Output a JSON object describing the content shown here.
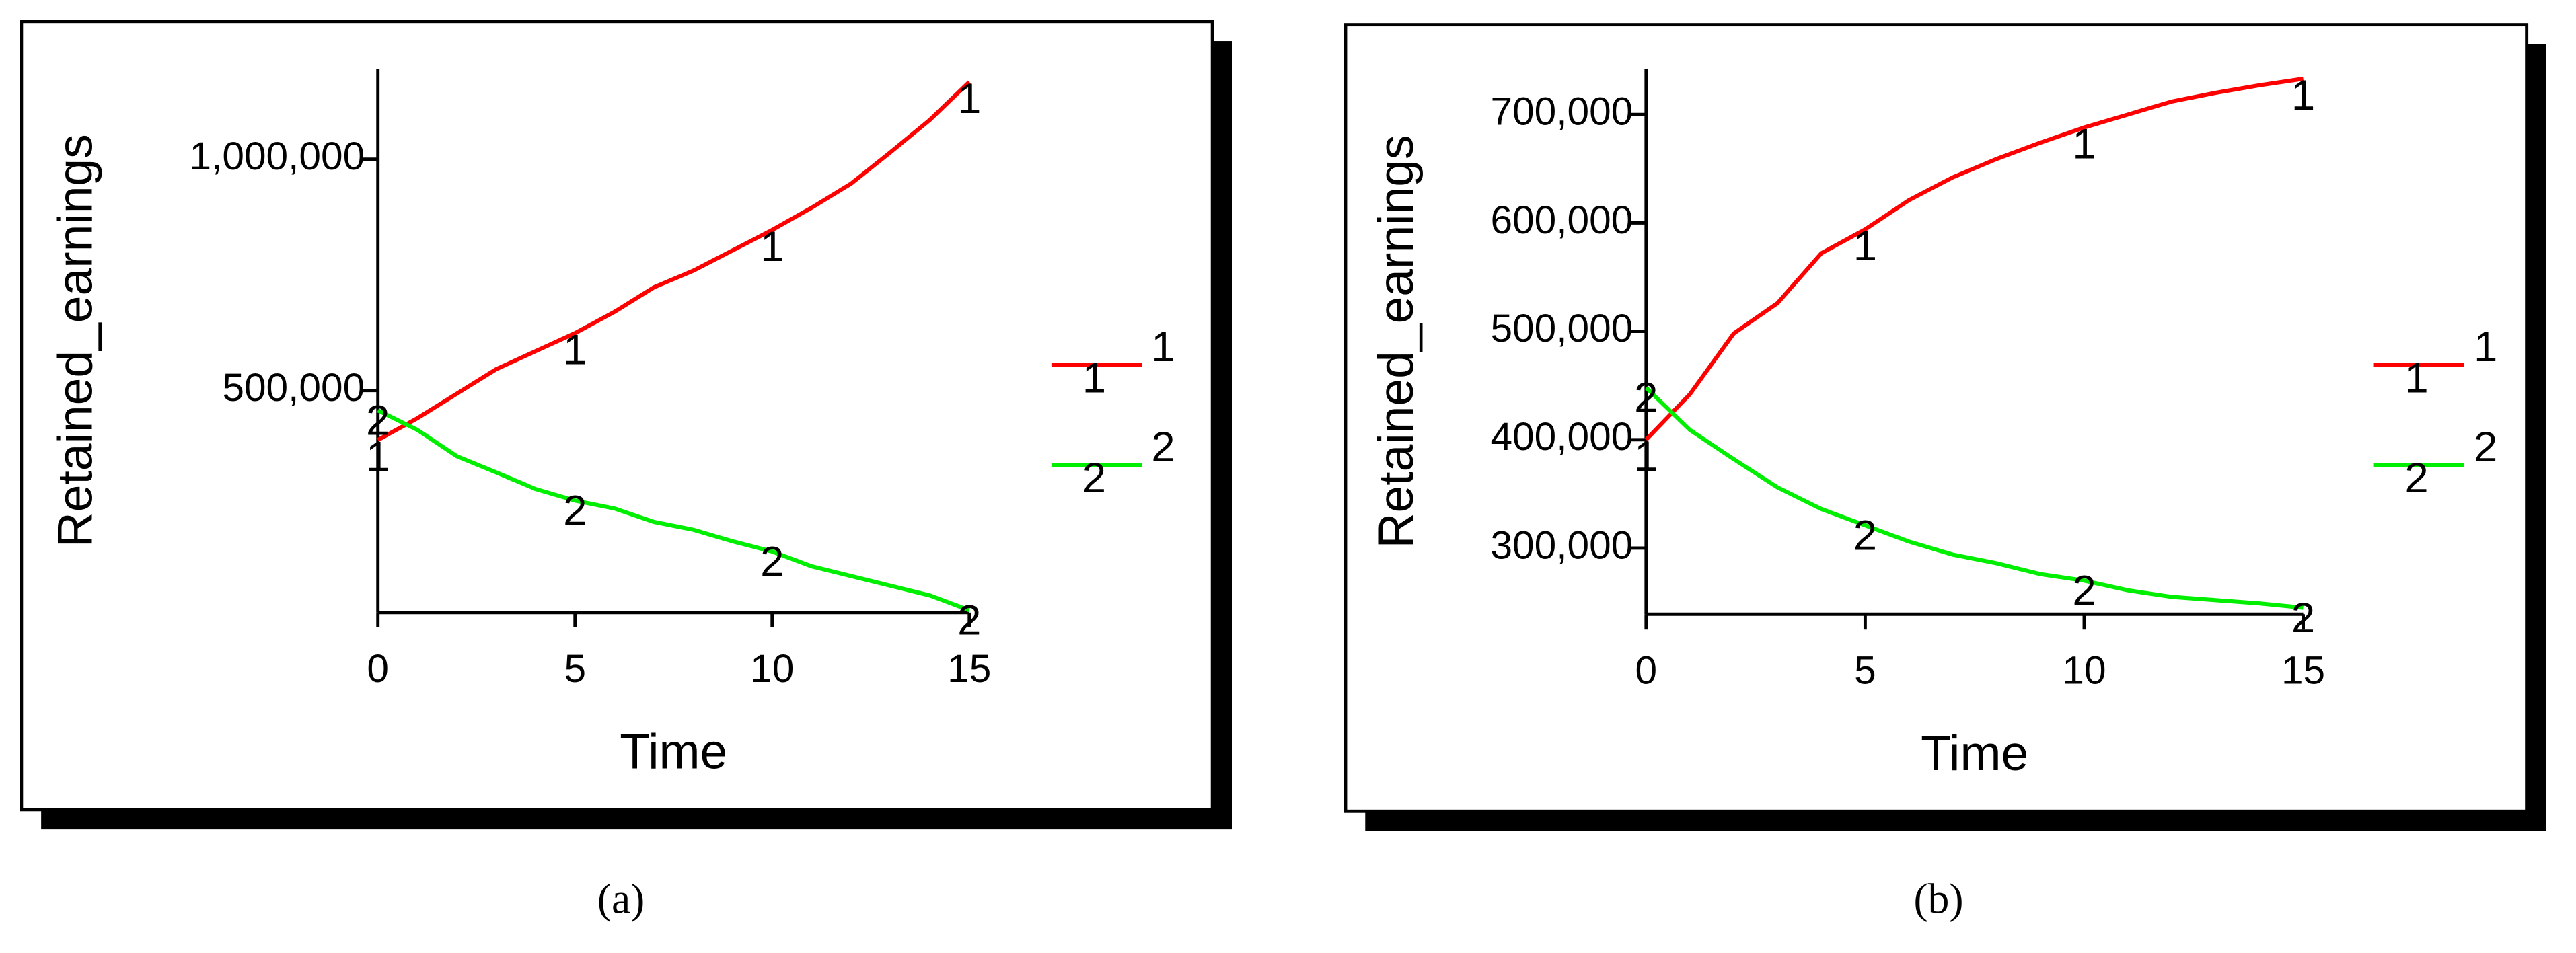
{
  "chart_data": [
    {
      "type": "line",
      "caption": "(a)",
      "x_label": "Time",
      "y_label": "Retained_earnings",
      "x": [
        0,
        1,
        2,
        3,
        4,
        5,
        6,
        7,
        8,
        9,
        10,
        11,
        12,
        13,
        14,
        15
      ],
      "xlim": [
        0,
        15
      ],
      "xticks": [
        0,
        5,
        10,
        15
      ],
      "ylim": [
        20000,
        1195000
      ],
      "yticks": [
        {
          "value": 500000,
          "label": "500,000"
        },
        {
          "value": 1000000,
          "label": "1,000,000"
        }
      ],
      "series": [
        {
          "name": "1",
          "color": "#ff0000",
          "values": [
            393000,
            440000,
            493000,
            546000,
            585000,
            624000,
            670000,
            723000,
            759000,
            803000,
            847000,
            895000,
            947000,
            1015000,
            1085000,
            1167000
          ]
        },
        {
          "name": "2",
          "color": "#00ee00",
          "values": [
            457000,
            415000,
            358000,
            323000,
            287000,
            262000,
            245000,
            216000,
            199000,
            174000,
            152000,
            120000,
            99000,
            78000,
            57000,
            25000
          ]
        }
      ]
    },
    {
      "type": "line",
      "caption": "(b)",
      "x_label": "Time",
      "y_label": "Retained_earnings",
      "x": [
        0,
        1,
        2,
        3,
        4,
        5,
        6,
        7,
        8,
        9,
        10,
        11,
        12,
        13,
        14,
        15
      ],
      "xlim": [
        0,
        15
      ],
      "xticks": [
        0,
        5,
        10,
        15
      ],
      "ylim": [
        239000,
        742000
      ],
      "yticks": [
        {
          "value": 300000,
          "label": "300,000"
        },
        {
          "value": 400000,
          "label": "400,000"
        },
        {
          "value": 500000,
          "label": "500,000"
        },
        {
          "value": 600000,
          "label": "600,000"
        },
        {
          "value": 700000,
          "label": "700,000"
        }
      ],
      "series": [
        {
          "name": "1",
          "color": "#ff0000",
          "values": [
            400000,
            442000,
            498000,
            526000,
            572000,
            594000,
            621000,
            642000,
            659000,
            674000,
            688000,
            700000,
            712000,
            720000,
            727000,
            733000
          ]
        },
        {
          "name": "2",
          "color": "#00ee00",
          "values": [
            448000,
            409000,
            382000,
            356000,
            336000,
            321000,
            306000,
            294000,
            286000,
            276000,
            270000,
            261000,
            255000,
            252000,
            249000,
            245000
          ]
        }
      ]
    }
  ]
}
